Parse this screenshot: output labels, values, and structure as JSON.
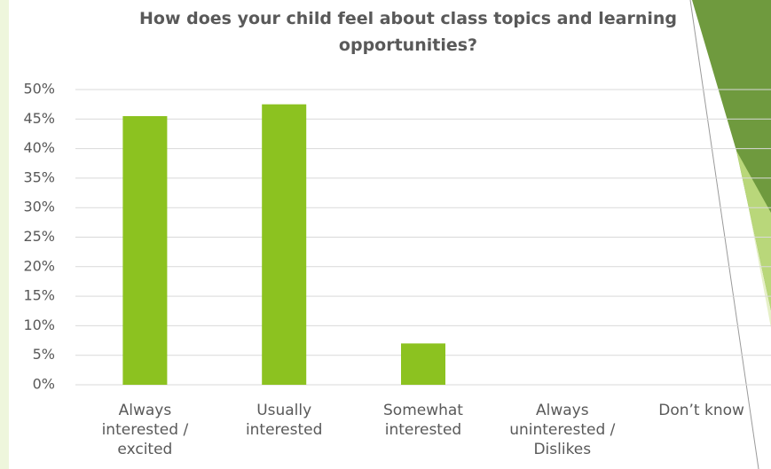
{
  "chart_data": {
    "type": "bar",
    "title": "How does your child feel about class topics and learning opportunities?",
    "categories": [
      "Always interested / excited",
      "Usually interested",
      "Somewhat interested",
      "Always uninterested / Dislikes",
      "Don’t know"
    ],
    "values": [
      45.5,
      47.5,
      7,
      0,
      0
    ],
    "color": "#8cc220",
    "ylim": [
      0,
      50
    ],
    "yticks": [
      {
        "value": 0,
        "label": "0%"
      },
      {
        "value": 5,
        "label": "5%"
      },
      {
        "value": 10,
        "label": "10%"
      },
      {
        "value": 15,
        "label": "15%"
      },
      {
        "value": 20,
        "label": "20%"
      },
      {
        "value": 25,
        "label": "25%"
      },
      {
        "value": 30,
        "label": "30%"
      },
      {
        "value": 35,
        "label": "35%"
      },
      {
        "value": 40,
        "label": "40%"
      },
      {
        "value": 45,
        "label": "45%"
      },
      {
        "value": 50,
        "label": "50%"
      }
    ],
    "grid": true
  }
}
